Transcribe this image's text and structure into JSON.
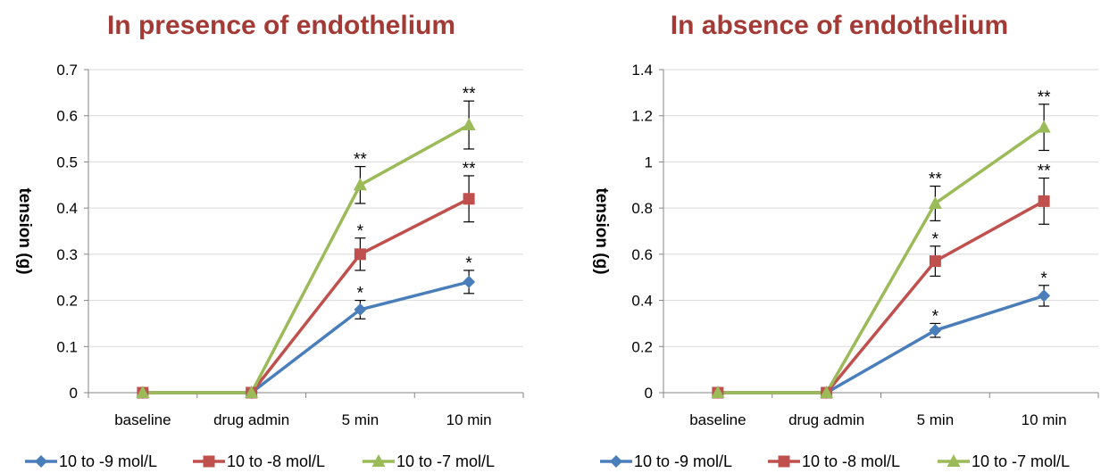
{
  "chart_data": [
    {
      "type": "line",
      "title": "In presence of endothelium",
      "xlabel": "",
      "ylabel": "tension (g)",
      "categories": [
        "baseline",
        "drug admin",
        "5 min",
        "10 min"
      ],
      "ylim": [
        0,
        0.7
      ],
      "yticks": [
        0,
        0.1,
        0.2,
        0.3,
        0.4,
        0.5,
        0.6,
        0.7
      ],
      "grid": true,
      "legend": "bottom",
      "series": [
        {
          "name": "10 to -9 mol/L",
          "color": "#4a7ebb",
          "marker": "diamond",
          "values": [
            0,
            0,
            0.18,
            0.24
          ],
          "errors": [
            0,
            0,
            0.02,
            0.025
          ],
          "annotations": [
            "",
            "",
            "*",
            "*"
          ]
        },
        {
          "name": "10 to -8 mol/L",
          "color": "#c0504d",
          "marker": "square",
          "values": [
            0,
            0,
            0.3,
            0.42
          ],
          "errors": [
            0,
            0,
            0.035,
            0.05
          ],
          "annotations": [
            "",
            "",
            "*",
            "**"
          ]
        },
        {
          "name": "10 to -7 mol/L",
          "color": "#9bbb59",
          "marker": "triangle",
          "values": [
            0,
            0,
            0.45,
            0.58
          ],
          "errors": [
            0,
            0,
            0.04,
            0.052
          ],
          "annotations": [
            "",
            "",
            "**",
            "**"
          ]
        }
      ]
    },
    {
      "type": "line",
      "title": "In absence of endothelium",
      "xlabel": "",
      "ylabel": "tension (g)",
      "categories": [
        "baseline",
        "drug admin",
        "5 min",
        "10 min"
      ],
      "ylim": [
        0,
        1.4
      ],
      "yticks": [
        0,
        0.2,
        0.4,
        0.6,
        0.8,
        1,
        1.2,
        1.4
      ],
      "grid": true,
      "legend": "bottom",
      "series": [
        {
          "name": "10 to -9 mol/L",
          "color": "#4a7ebb",
          "marker": "diamond",
          "values": [
            0,
            0,
            0.27,
            0.42
          ],
          "errors": [
            0,
            0,
            0.03,
            0.045
          ],
          "annotations": [
            "",
            "",
            "*",
            "*"
          ]
        },
        {
          "name": "10 to -8 mol/L",
          "color": "#c0504d",
          "marker": "square",
          "values": [
            0,
            0,
            0.57,
            0.83
          ],
          "errors": [
            0,
            0,
            0.065,
            0.1
          ],
          "annotations": [
            "",
            "",
            "*",
            "**"
          ]
        },
        {
          "name": "10 to -7 mol/L",
          "color": "#9bbb59",
          "marker": "triangle",
          "values": [
            0,
            0,
            0.82,
            1.15
          ],
          "errors": [
            0,
            0,
            0.075,
            0.1
          ],
          "annotations": [
            "",
            "",
            "**",
            "**"
          ]
        }
      ]
    }
  ],
  "title_color": "#a33a35",
  "axis_color": "#868686",
  "grid_color": "#d9d9d9"
}
